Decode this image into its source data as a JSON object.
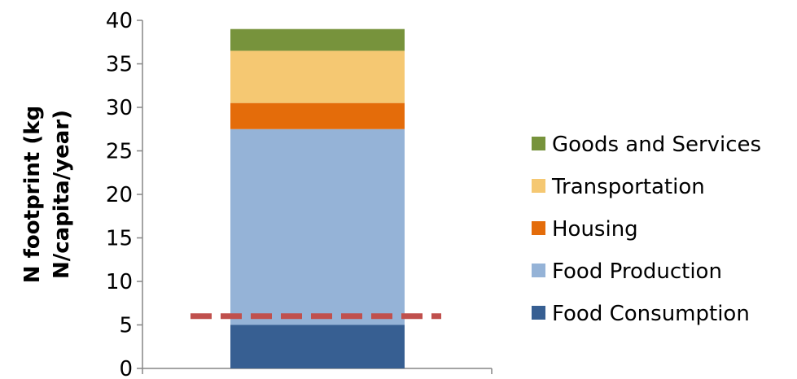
{
  "chart_data": {
    "type": "bar",
    "stacked": true,
    "categories": [
      ""
    ],
    "ylabel_lines": [
      "N footprint (kg",
      "N/capita/year)"
    ],
    "ylim": [
      0,
      40
    ],
    "yticks": [
      0,
      5,
      10,
      15,
      20,
      25,
      30,
      35,
      40
    ],
    "series": [
      {
        "name": "Food Consumption",
        "values": [
          5
        ],
        "color": "#375f92"
      },
      {
        "name": "Food Production",
        "values": [
          22.5
        ],
        "color": "#95b3d7"
      },
      {
        "name": "Housing",
        "values": [
          3
        ],
        "color": "#e46c0a"
      },
      {
        "name": "Transportation",
        "values": [
          6
        ],
        "color": "#f5c872"
      },
      {
        "name": "Goods and Services",
        "values": [
          2.5
        ],
        "color": "#77933c"
      }
    ],
    "reference_line": {
      "y": 6,
      "style": "dashed",
      "color": "#c0504d"
    },
    "legend_position": "right",
    "legend_order": [
      "Goods and Services",
      "Transportation",
      "Housing",
      "Food Production",
      "Food Consumption"
    ],
    "grid": false
  }
}
